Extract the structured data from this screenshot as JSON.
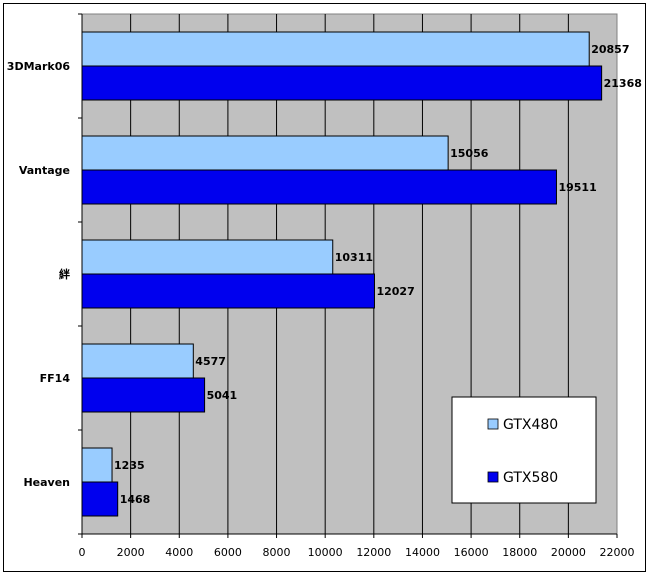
{
  "chart_data": {
    "type": "bar",
    "orientation": "horizontal",
    "categories": [
      "3DMark06",
      "Vantage",
      "絆",
      "FF14",
      "Heaven"
    ],
    "series": [
      {
        "name": "GTX480",
        "values": [
          20857,
          15056,
          10311,
          4577,
          1235
        ],
        "color": "#99ccff"
      },
      {
        "name": "GTX580",
        "values": [
          21368,
          19511,
          12027,
          5041,
          1468
        ],
        "color": "#0000ee"
      }
    ],
    "x_ticks": [
      "0",
      "2000",
      "4000",
      "6000",
      "8000",
      "10000",
      "12000",
      "14000",
      "16000",
      "18000",
      "20000",
      "22000"
    ],
    "xlim": [
      0,
      22000
    ],
    "grid": "vertical",
    "plot_background": "#c0c0c0",
    "legend_position": "bottom-right",
    "title": "",
    "xlabel": "",
    "ylabel": ""
  }
}
